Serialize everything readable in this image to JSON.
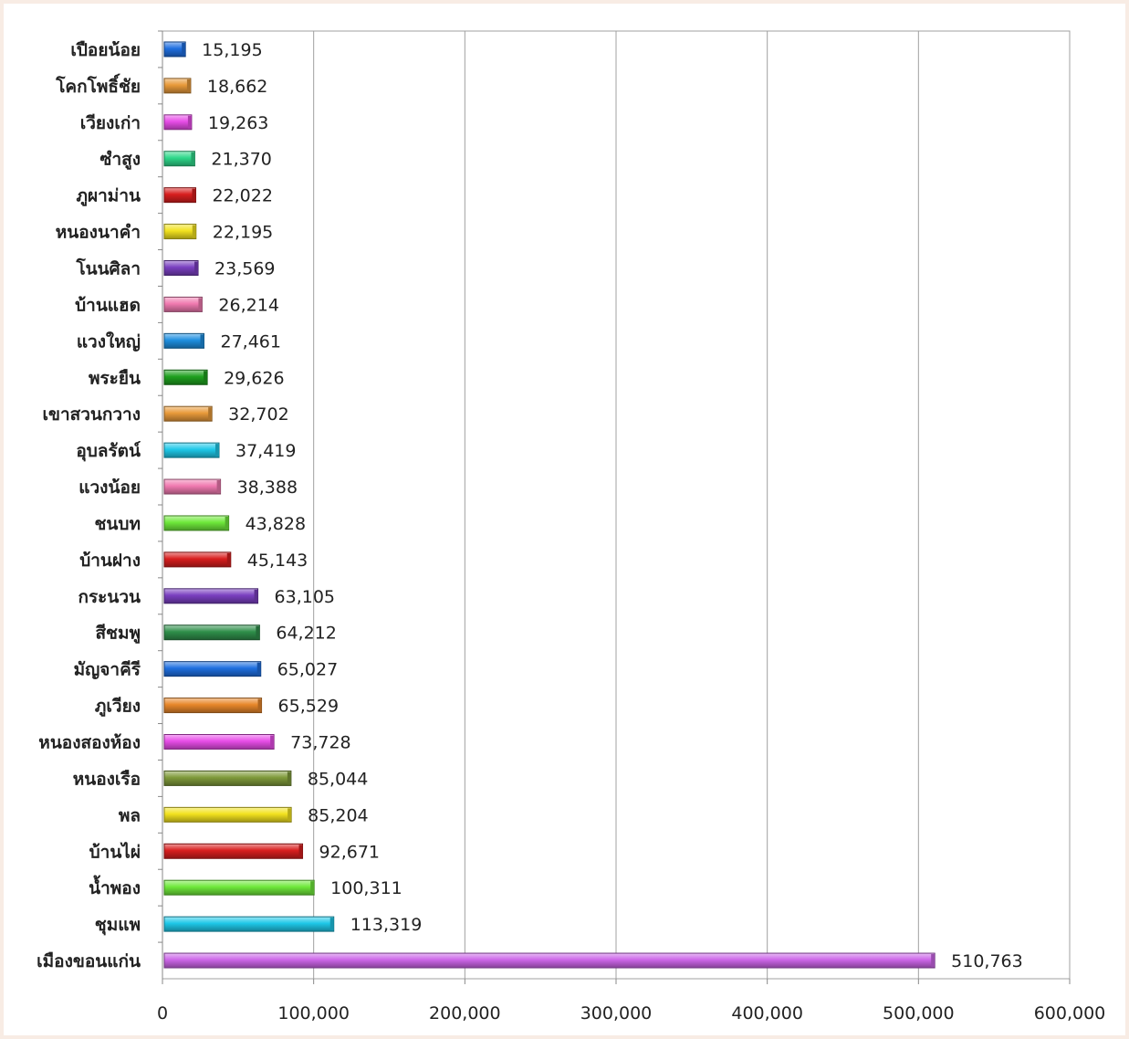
{
  "chart_data": {
    "type": "bar",
    "orientation": "horizontal",
    "categories": [
      "เปือยน้อย",
      "โคกโพธิ์ชัย",
      "เวียงเก่า",
      "ซำสูง",
      "ภูผาม่าน",
      "หนองนาคำ",
      "โนนศิลา",
      "บ้านแฮด",
      "แวงใหญ่",
      "พระยืน",
      "เขาสวนกวาง",
      "อุบลรัตน์",
      "แวงน้อย",
      "ชนบท",
      "บ้านฝาง",
      "กระนวน",
      "สีชมพู",
      "มัญจาคีรี",
      "ภูเวียง",
      "หนองสองห้อง",
      "หนองเรือ",
      "พล",
      "บ้านไผ่",
      "น้ำพอง",
      "ชุมแพ",
      "เมืองขอนแก่น"
    ],
    "values": [
      15195,
      18662,
      19263,
      21370,
      22022,
      22195,
      23569,
      26214,
      27461,
      29626,
      32702,
      37419,
      38388,
      43828,
      45143,
      63105,
      64212,
      65027,
      65529,
      73728,
      85044,
      85204,
      92671,
      100311,
      113319,
      510763
    ],
    "value_labels": [
      "15,195",
      "18,662",
      "19,263",
      "21,370",
      "22,022",
      "22,195",
      "23,569",
      "26,214",
      "27,461",
      "29,626",
      "32,702",
      "37,419",
      "38,388",
      "43,828",
      "45,143",
      "63,105",
      "64,212",
      "65,027",
      "65,529",
      "73,728",
      "85,044",
      "85,204",
      "92,671",
      "100,311",
      "113,319",
      "510,763"
    ],
    "colors": [
      "#1f6fe0",
      "#e89a3a",
      "#e84de8",
      "#2ed88a",
      "#d81e1e",
      "#f2e21e",
      "#7a3fc0",
      "#f07ab0",
      "#1f8fe0",
      "#1ea01e",
      "#e89a3a",
      "#1ec8e8",
      "#f07ab0",
      "#6ee83a",
      "#d81e1e",
      "#7a3fc0",
      "#2f8f4a",
      "#1f6fe0",
      "#e8872a",
      "#e84de8",
      "#7f9a3a",
      "#f2e21e",
      "#d81e1e",
      "#6ee83a",
      "#1ec8e8",
      "#cc66e8"
    ],
    "xlim": [
      0,
      600000
    ],
    "x_ticks": [
      0,
      100000,
      200000,
      300000,
      400000,
      500000,
      600000
    ],
    "x_tick_labels": [
      "0",
      "100,000",
      "200,000",
      "300,000",
      "400,000",
      "500,000",
      "600,000"
    ],
    "title": "",
    "xlabel": "",
    "ylabel": "",
    "grid": "vertical",
    "legend": "none"
  }
}
